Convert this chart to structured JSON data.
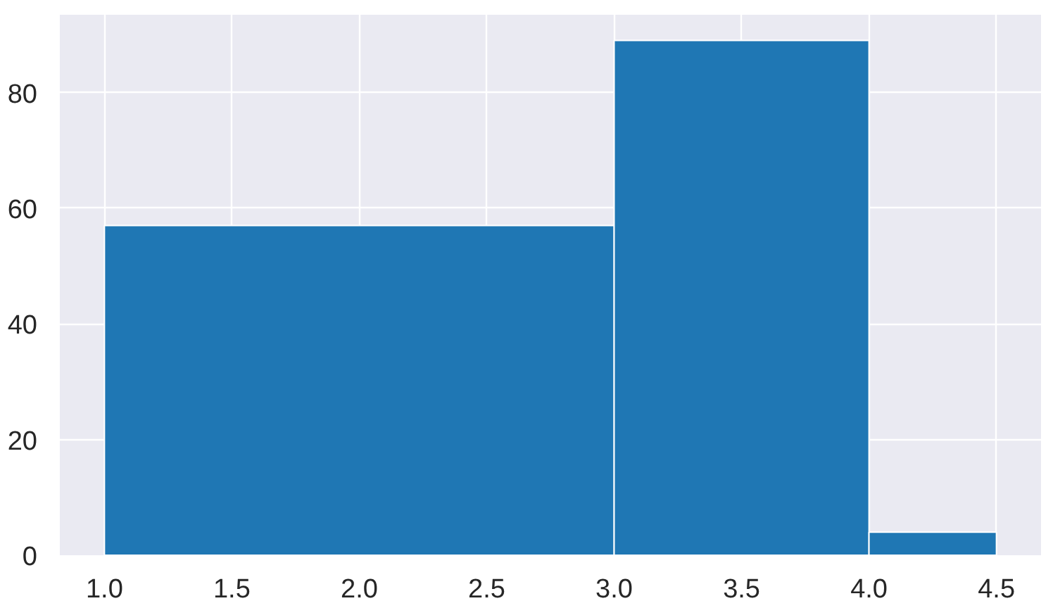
{
  "chart_data": {
    "type": "histogram",
    "bins": [
      1.0,
      3.0,
      4.0,
      4.5
    ],
    "values": [
      57,
      89,
      4
    ],
    "color": "#1f77b4",
    "xlim": [
      0.825,
      4.675
    ],
    "ylim": [
      0,
      93.45
    ],
    "xticks": [
      {
        "value": 1.0,
        "label": "1.0"
      },
      {
        "value": 1.5,
        "label": "1.5"
      },
      {
        "value": 2.0,
        "label": "2.0"
      },
      {
        "value": 2.5,
        "label": "2.5"
      },
      {
        "value": 3.0,
        "label": "3.0"
      },
      {
        "value": 3.5,
        "label": "3.5"
      },
      {
        "value": 4.0,
        "label": "4.0"
      },
      {
        "value": 4.5,
        "label": "4.5"
      }
    ],
    "yticks": [
      0,
      20,
      40,
      60,
      80
    ],
    "grid": true
  }
}
